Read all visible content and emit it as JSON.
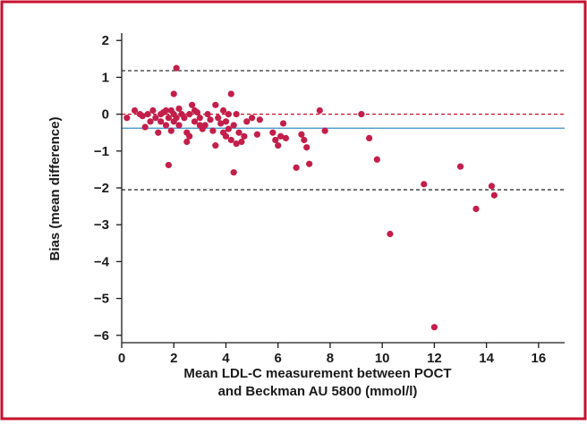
{
  "chart_data": {
    "type": "scatter",
    "ylabel": "Bias (mean difference)",
    "xlabel": [
      "Mean LDL-C measurement between POCT",
      "and Beckman AU 5800 (mmol/l)"
    ],
    "xlim": [
      0,
      17
    ],
    "ylim": [
      -6.2,
      2.2
    ],
    "xticks": [
      0,
      2,
      4,
      6,
      8,
      10,
      12,
      14,
      16
    ],
    "yticks": [
      2,
      1,
      0,
      {
        "value": -1,
        "label": "−1"
      },
      {
        "value": -2,
        "label": "−2"
      },
      {
        "value": -3,
        "label": "−3"
      },
      {
        "value": -4,
        "label": "−4"
      },
      {
        "value": -5,
        "label": "−5"
      },
      {
        "value": -6,
        "label": "−6"
      }
    ],
    "frame_color": "#c8102e",
    "reference_lines": [
      {
        "value": 1.18,
        "color": "#333333",
        "style": "dashed"
      },
      {
        "value": 0,
        "color": "#c8102e",
        "style": "dashed"
      },
      {
        "value": -0.38,
        "color": "#3a8fc8",
        "style": "solid"
      },
      {
        "value": -2.05,
        "color": "#333333",
        "style": "dashed"
      }
    ],
    "series": [
      {
        "color": "#c41e4a",
        "x": [
          0.2,
          0.5,
          0.7,
          0.8,
          0.9,
          1.0,
          1.1,
          1.2,
          1.3,
          1.4,
          1.5,
          1.5,
          1.6,
          1.7,
          1.7,
          1.8,
          1.8,
          1.9,
          1.9,
          2.0,
          2.0,
          2.0,
          2.1,
          2.1,
          2.2,
          2.2,
          2.3,
          2.4,
          2.5,
          2.5,
          2.6,
          2.6,
          2.7,
          2.8,
          2.8,
          2.9,
          3.0,
          3.0,
          3.1,
          3.2,
          3.3,
          3.4,
          3.5,
          3.6,
          3.6,
          3.7,
          3.8,
          3.9,
          3.9,
          4.0,
          4.0,
          4.1,
          4.1,
          4.2,
          4.2,
          4.3,
          4.3,
          4.4,
          4.4,
          4.5,
          4.6,
          4.7,
          4.8,
          5.0,
          5.2,
          5.3,
          5.8,
          5.9,
          6.0,
          6.1,
          6.2,
          6.3,
          6.7,
          6.9,
          7.0,
          7.1,
          7.2,
          7.6,
          7.8,
          9.2,
          9.5,
          9.8,
          10.3,
          11.6,
          12.0,
          13.0,
          13.6,
          14.2,
          14.3
        ],
        "y": [
          -0.1,
          0.1,
          0.0,
          -0.05,
          -0.35,
          0.0,
          -0.2,
          0.1,
          -0.1,
          -0.5,
          0.0,
          -0.2,
          0.05,
          -0.3,
          0.1,
          -0.1,
          -1.38,
          0.1,
          -0.45,
          0.0,
          -0.2,
          0.55,
          1.25,
          -0.1,
          0.15,
          -0.3,
          0.0,
          -0.1,
          -0.5,
          -0.75,
          -0.6,
          0.0,
          0.25,
          0.1,
          -0.2,
          0.05,
          -0.1,
          -0.3,
          -0.4,
          -0.3,
          0.0,
          -0.15,
          -0.45,
          0.25,
          -0.85,
          -0.1,
          -0.25,
          0.1,
          -0.5,
          -0.2,
          -0.6,
          0.0,
          -0.4,
          0.55,
          -0.7,
          -1.58,
          -0.3,
          -0.8,
          0.0,
          -0.5,
          -0.75,
          -0.6,
          -0.2,
          -0.1,
          -0.55,
          -0.15,
          -0.5,
          -0.7,
          -0.85,
          -0.6,
          -0.25,
          -0.65,
          -1.45,
          -0.55,
          -0.7,
          -0.9,
          -1.35,
          0.1,
          -0.45,
          0.0,
          -0.65,
          -1.23,
          -3.25,
          -1.9,
          -5.78,
          -1.42,
          -2.57,
          -1.95,
          -2.2
        ]
      }
    ]
  }
}
